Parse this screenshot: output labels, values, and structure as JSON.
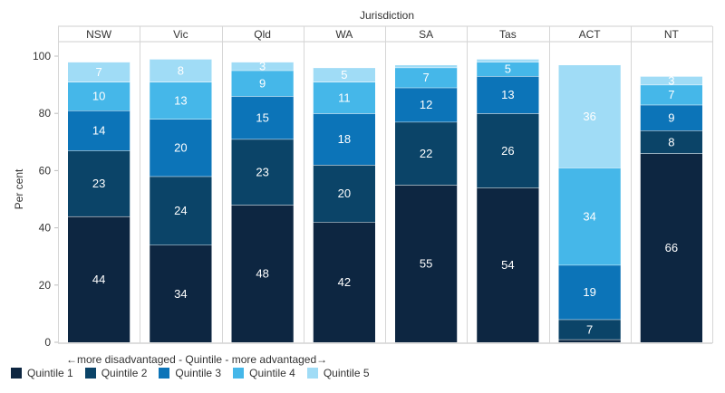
{
  "chart_data": {
    "type": "bar",
    "stacked": true,
    "title": "Jurisdiction",
    "ylabel": "Per cent",
    "ylim": [
      0,
      100
    ],
    "yticks": [
      0,
      20,
      40,
      60,
      80,
      100
    ],
    "categories": [
      "NSW",
      "Vic",
      "Qld",
      "WA",
      "SA",
      "Tas",
      "ACT",
      "NT"
    ],
    "series": [
      {
        "name": "Quintile 1",
        "color": "#0d2641",
        "values": [
          44,
          34,
          48,
          42,
          55,
          54,
          1,
          66
        ],
        "labels": [
          "44",
          "34",
          "48",
          "42",
          "55",
          "54",
          "",
          "66"
        ],
        "label_color": "#ffffff"
      },
      {
        "name": "Quintile 2",
        "color": "#0b4468",
        "values": [
          23,
          24,
          23,
          20,
          22,
          26,
          7,
          8
        ],
        "labels": [
          "23",
          "24",
          "23",
          "20",
          "22",
          "26",
          "7",
          "8"
        ],
        "label_color": "#ffffff"
      },
      {
        "name": "Quintile 3",
        "color": "#0c74b8",
        "values": [
          14,
          20,
          15,
          18,
          12,
          13,
          19,
          9
        ],
        "labels": [
          "14",
          "20",
          "15",
          "18",
          "12",
          "13",
          "19",
          "9"
        ],
        "label_color": "#ffffff"
      },
      {
        "name": "Quintile 4",
        "color": "#45b7e9",
        "values": [
          10,
          13,
          9,
          11,
          7,
          5,
          34,
          7
        ],
        "labels": [
          "10",
          "13",
          "9",
          "11",
          "7",
          "5",
          "34",
          "7"
        ],
        "label_color": "#ffffff"
      },
      {
        "name": "Quintile 5",
        "color": "#a0dcf6",
        "values": [
          7,
          8,
          3,
          5,
          1,
          1,
          36,
          3
        ],
        "labels": [
          "7",
          "8",
          "3",
          "5",
          "",
          "",
          "36",
          "3"
        ],
        "label_color": "#ffffff"
      }
    ],
    "note": "←more disadvantaged - Quintile - more advantaged→",
    "legend_position": "bottom-left"
  }
}
